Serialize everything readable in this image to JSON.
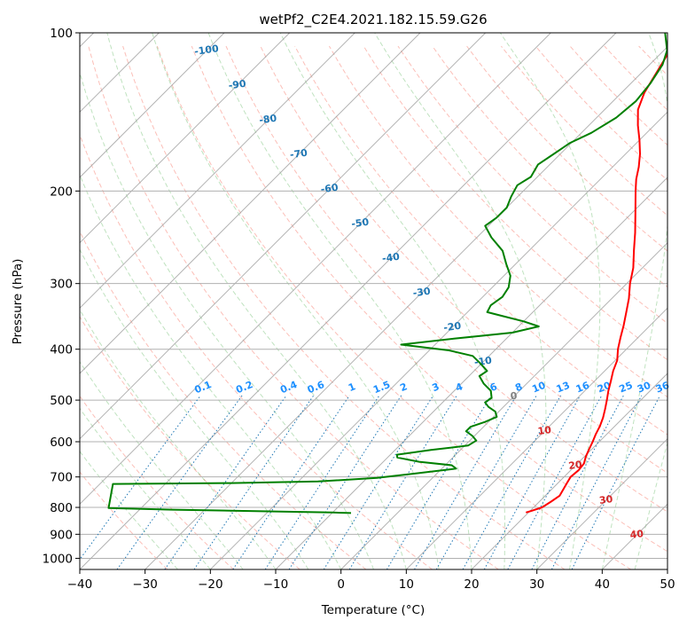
{
  "chart_data": {
    "type": "line",
    "subtype": "skew-T log-p diagram",
    "title": "wetPf2_C2E4.2021.182.15.59.G26",
    "xlabel": "Temperature (°C)",
    "ylabel": "Pressure (hPa)",
    "xlim": [
      -40,
      50
    ],
    "ylim": [
      1050,
      100
    ],
    "y_scale": "log",
    "x_ticks": [
      "−40",
      "−30",
      "−20",
      "−10",
      "0",
      "10",
      "20",
      "30",
      "40",
      "50"
    ],
    "y_ticks": [
      "100",
      "200",
      "300",
      "400",
      "500",
      "600",
      "700",
      "800",
      "900",
      "1000"
    ],
    "grid": true,
    "colors": {
      "temperature": "#ff0000",
      "dewpoint": "#008000",
      "dry_adiabats": "#fa8072",
      "moist_adiabats": "#2ca02c",
      "mixing_ratio": "#1f77b4",
      "isotherm_labels_cold": "#1f77b4",
      "isotherm_labels_warm": "#d62728",
      "isotherm_zero": "#808080",
      "mixing_label": "#1e90ff"
    },
    "isotherm_labels": [
      "-100",
      "-90",
      "-80",
      "-70",
      "-60",
      "-50",
      "-40",
      "-30",
      "-20",
      "-10",
      "0",
      "10",
      "20",
      "30",
      "40"
    ],
    "mixing_ratio_labels": [
      "0.1",
      "0.2",
      "0.4",
      "0.6",
      "1",
      "1.5",
      "2",
      "3",
      "4",
      "6",
      "8",
      "10",
      "13",
      "16",
      "20",
      "25",
      "30",
      "36"
    ],
    "series": [
      {
        "key": "temperature",
        "points": [
          {
            "p": 818,
            "t": 19.6
          },
          {
            "p": 812,
            "t": 20.2
          },
          {
            "p": 800,
            "t": 21.3
          },
          {
            "p": 780,
            "t": 21.8
          },
          {
            "p": 760,
            "t": 22.2
          },
          {
            "p": 740,
            "t": 21.8
          },
          {
            "p": 720,
            "t": 21.4
          },
          {
            "p": 700,
            "t": 21.0
          },
          {
            "p": 680,
            "t": 21.2
          },
          {
            "p": 660,
            "t": 21.0
          },
          {
            "p": 640,
            "t": 20.2
          },
          {
            "p": 620,
            "t": 19.6
          },
          {
            "p": 600,
            "t": 19.0
          },
          {
            "p": 580,
            "t": 18.3
          },
          {
            "p": 560,
            "t": 17.7
          },
          {
            "p": 540,
            "t": 16.9
          },
          {
            "p": 520,
            "t": 15.9
          },
          {
            "p": 500,
            "t": 14.8
          },
          {
            "p": 480,
            "t": 13.6
          },
          {
            "p": 460,
            "t": 12.5
          },
          {
            "p": 440,
            "t": 11.3
          },
          {
            "p": 420,
            "t": 10.3
          },
          {
            "p": 400,
            "t": 8.7
          },
          {
            "p": 380,
            "t": 7.3
          },
          {
            "p": 360,
            "t": 5.9
          },
          {
            "p": 340,
            "t": 4.3
          },
          {
            "p": 320,
            "t": 2.6
          },
          {
            "p": 300,
            "t": 0.5
          },
          {
            "p": 280,
            "t": -1.4
          },
          {
            "p": 260,
            "t": -3.9
          },
          {
            "p": 240,
            "t": -6.5
          },
          {
            "p": 220,
            "t": -9.5
          },
          {
            "p": 200,
            "t": -12.8
          },
          {
            "p": 190,
            "t": -14.5
          },
          {
            "p": 180,
            "t": -16.0
          },
          {
            "p": 170,
            "t": -17.8
          },
          {
            "p": 160,
            "t": -20.0
          },
          {
            "p": 150,
            "t": -22.5
          },
          {
            "p": 140,
            "t": -24.9
          },
          {
            "p": 130,
            "t": -26.5
          },
          {
            "p": 120,
            "t": -27.6
          },
          {
            "p": 110,
            "t": -28.8
          },
          {
            "p": 100,
            "t": -31.2
          }
        ]
      },
      {
        "key": "dewpoint",
        "points": [
          {
            "p": 820,
            "t": -7.1
          },
          {
            "p": 818,
            "t": -10.0
          },
          {
            "p": 814,
            "t": -20.0
          },
          {
            "p": 808,
            "t": -35.0
          },
          {
            "p": 802,
            "t": -45.0
          },
          {
            "p": 722,
            "t": -48.0
          },
          {
            "p": 719,
            "t": -30.0
          },
          {
            "p": 714,
            "t": -17.0
          },
          {
            "p": 703,
            "t": -8.5
          },
          {
            "p": 690,
            "t": -3.5
          },
          {
            "p": 675,
            "t": 2.2
          },
          {
            "p": 665,
            "t": 1.0
          },
          {
            "p": 655,
            "t": -4.5
          },
          {
            "p": 643,
            "t": -8.5
          },
          {
            "p": 635,
            "t": -9.0
          },
          {
            "p": 622,
            "t": -4.5
          },
          {
            "p": 610,
            "t": 0.5
          },
          {
            "p": 597,
            "t": 1.0
          },
          {
            "p": 585,
            "t": -0.3
          },
          {
            "p": 573,
            "t": -2.0
          },
          {
            "p": 562,
            "t": -2.0
          },
          {
            "p": 550,
            "t": -0.5
          },
          {
            "p": 538,
            "t": 0.5
          },
          {
            "p": 526,
            "t": -0.5
          },
          {
            "p": 515,
            "t": -2.3
          },
          {
            "p": 505,
            "t": -3.5
          },
          {
            "p": 495,
            "t": -3.2
          },
          {
            "p": 480,
            "t": -4.4
          },
          {
            "p": 465,
            "t": -6.6
          },
          {
            "p": 450,
            "t": -8.4
          },
          {
            "p": 440,
            "t": -8.0
          },
          {
            "p": 425,
            "t": -10.3
          },
          {
            "p": 412,
            "t": -12.5
          },
          {
            "p": 402,
            "t": -17.0
          },
          {
            "p": 392,
            "t": -25.2
          },
          {
            "p": 382,
            "t": -18.0
          },
          {
            "p": 372,
            "t": -10.0
          },
          {
            "p": 362,
            "t": -6.9
          },
          {
            "p": 354,
            "t": -10.0
          },
          {
            "p": 346,
            "t": -14.0
          },
          {
            "p": 340,
            "t": -17.0
          },
          {
            "p": 330,
            "t": -17.5
          },
          {
            "p": 318,
            "t": -17.0
          },
          {
            "p": 305,
            "t": -17.5
          },
          {
            "p": 290,
            "t": -19.0
          },
          {
            "p": 275,
            "t": -21.5
          },
          {
            "p": 260,
            "t": -24.0
          },
          {
            "p": 245,
            "t": -27.8
          },
          {
            "p": 233,
            "t": -30.5
          },
          {
            "p": 225,
            "t": -30.0
          },
          {
            "p": 215,
            "t": -30.0
          },
          {
            "p": 205,
            "t": -31.0
          },
          {
            "p": 195,
            "t": -31.8
          },
          {
            "p": 188,
            "t": -31.0
          },
          {
            "p": 178,
            "t": -31.8
          },
          {
            "p": 170,
            "t": -31.0
          },
          {
            "p": 162,
            "t": -30.2
          },
          {
            "p": 155,
            "t": -28.5
          },
          {
            "p": 145,
            "t": -27.0
          },
          {
            "p": 135,
            "t": -26.5
          },
          {
            "p": 125,
            "t": -27.0
          },
          {
            "p": 115,
            "t": -28.0
          },
          {
            "p": 108,
            "t": -29.5
          },
          {
            "p": 100,
            "t": -32.5
          }
        ]
      }
    ]
  }
}
